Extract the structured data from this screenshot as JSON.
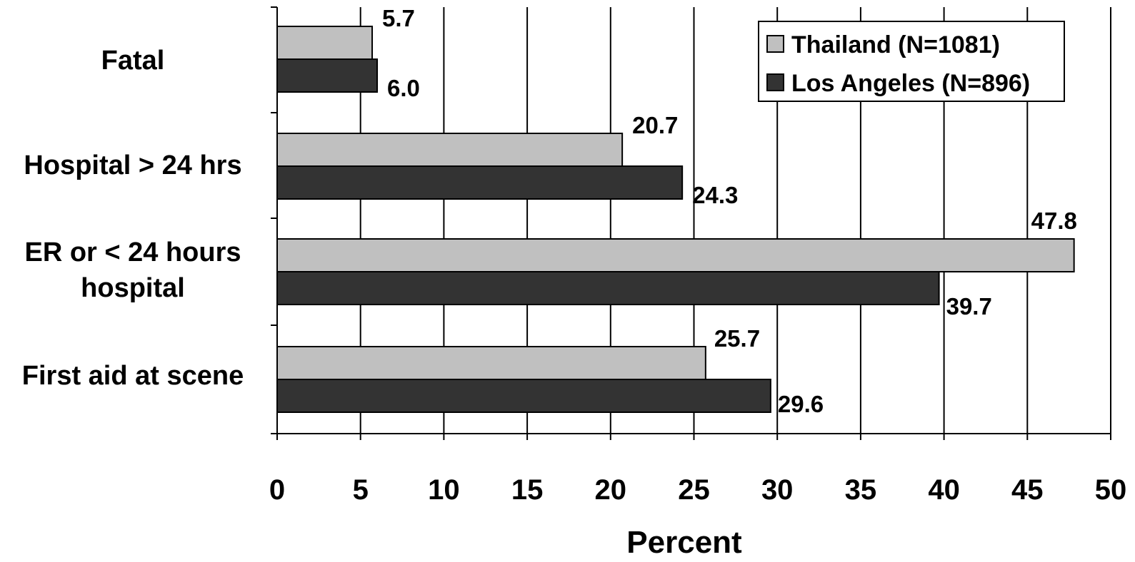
{
  "chart_data": {
    "type": "bar",
    "orientation": "horizontal",
    "categories": [
      [
        "Fatal"
      ],
      [
        "Hospital > 24 hrs"
      ],
      [
        "ER or < 24 hours",
        "hospital"
      ],
      [
        "First aid at scene"
      ]
    ],
    "series": [
      {
        "name": "Thailand (N=1081)",
        "color": "#c0c0c0",
        "values": [
          5.7,
          20.7,
          47.8,
          25.7
        ],
        "labels": [
          "5.7",
          "20.7",
          "47.8",
          "25.7"
        ]
      },
      {
        "name": "Los Angeles (N=896)",
        "color": "#333333",
        "values": [
          6.0,
          24.3,
          39.7,
          29.6
        ],
        "labels": [
          "6.0",
          "24.3",
          "39.7",
          "29.6"
        ]
      }
    ],
    "xlabel": "Percent",
    "ylabel": "",
    "xlim": [
      0,
      50
    ],
    "xticks": [
      "0",
      "5",
      "10",
      "15",
      "20",
      "25",
      "30",
      "35",
      "40",
      "45",
      "50"
    ],
    "grid": "vertical",
    "legend": "top-right"
  }
}
